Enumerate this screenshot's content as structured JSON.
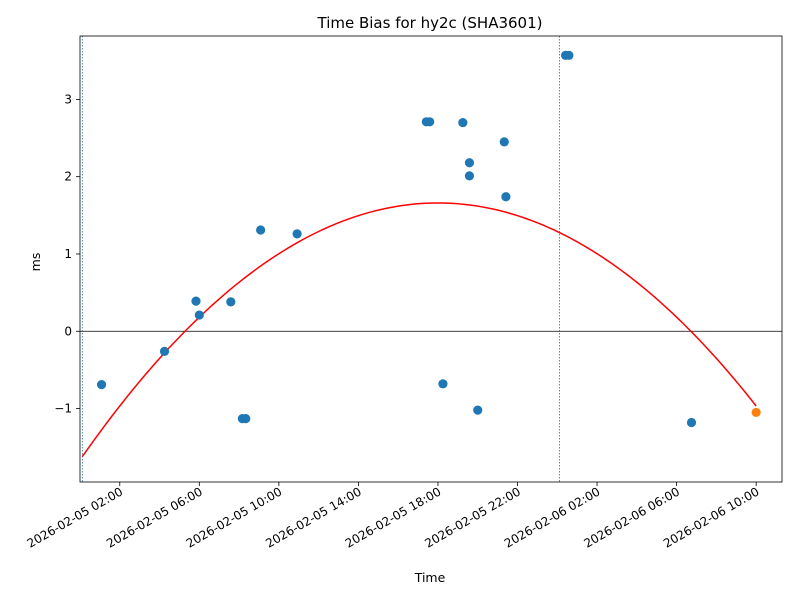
{
  "chart_data": {
    "type": "scatter",
    "title": "Time Bias for hy2c (SHA3601)",
    "xlabel": "Time",
    "ylabel": "ms",
    "xlim": [
      "2026-02-05 00:00",
      "2026-02-06 11:18"
    ],
    "ylim": [
      -1.95,
      3.82
    ],
    "x_ticks": [
      {
        "value": "2026-02-05 02:00",
        "label": "2026-02-05 02:00"
      },
      {
        "value": "2026-02-05 06:00",
        "label": "2026-02-05 06:00"
      },
      {
        "value": "2026-02-05 10:00",
        "label": "2026-02-05 10:00"
      },
      {
        "value": "2026-02-05 14:00",
        "label": "2026-02-05 14:00"
      },
      {
        "value": "2026-02-05 18:00",
        "label": "2026-02-05 18:00"
      },
      {
        "value": "2026-02-05 22:00",
        "label": "2026-02-05 22:00"
      },
      {
        "value": "2026-02-06 02:00",
        "label": "2026-02-06 02:00"
      },
      {
        "value": "2026-02-06 06:00",
        "label": "2026-02-06 06:00"
      },
      {
        "value": "2026-02-06 10:00",
        "label": "2026-02-06 10:00"
      }
    ],
    "y_ticks": [
      {
        "value": -1,
        "label": "−1"
      },
      {
        "value": 0,
        "label": "0"
      },
      {
        "value": 1,
        "label": "1"
      },
      {
        "value": 2,
        "label": "2"
      },
      {
        "value": 3,
        "label": "3"
      }
    ],
    "vertical_lines": [
      {
        "x": "2026-02-05 00:07",
        "style": "dotted",
        "color": "#1f77b4"
      },
      {
        "x": "2026-02-06 00:07",
        "style": "dotted",
        "color": "#1f77b4"
      }
    ],
    "horizontal_line": {
      "y": 0,
      "color": "#000000"
    },
    "series": [
      {
        "kind": "points",
        "color": "#1f77b4",
        "points": [
          {
            "x": "2026-02-05 01:05",
            "y": -0.69
          },
          {
            "x": "2026-02-05 04:15",
            "y": -0.26
          },
          {
            "x": "2026-02-05 05:50",
            "y": 0.39
          },
          {
            "x": "2026-02-05 06:00",
            "y": 0.21
          },
          {
            "x": "2026-02-05 07:35",
            "y": 0.38
          },
          {
            "x": "2026-02-05 08:10",
            "y": -1.13
          },
          {
            "x": "2026-02-05 08:20",
            "y": -1.13
          },
          {
            "x": "2026-02-05 09:05",
            "y": 1.31
          },
          {
            "x": "2026-02-05 10:55",
            "y": 1.26
          },
          {
            "x": "2026-02-05 17:25",
            "y": 2.71
          },
          {
            "x": "2026-02-05 17:35",
            "y": 2.71
          },
          {
            "x": "2026-02-05 18:15",
            "y": -0.68
          },
          {
            "x": "2026-02-05 19:15",
            "y": 2.7
          },
          {
            "x": "2026-02-05 19:35",
            "y": 2.18
          },
          {
            "x": "2026-02-05 19:35",
            "y": 2.01
          },
          {
            "x": "2026-02-05 20:00",
            "y": -1.02
          },
          {
            "x": "2026-02-05 21:20",
            "y": 2.45
          },
          {
            "x": "2026-02-05 21:25",
            "y": 1.74
          },
          {
            "x": "2026-02-06 00:25",
            "y": 3.57
          },
          {
            "x": "2026-02-06 00:35",
            "y": 3.57
          },
          {
            "x": "2026-02-06 06:45",
            "y": -1.18
          }
        ]
      },
      {
        "kind": "points",
        "color": "#ff7f0e",
        "points": [
          {
            "x": "2026-02-06 10:00",
            "y": -1.05
          }
        ]
      },
      {
        "kind": "curve",
        "color": "#ff0000",
        "fit": "quadratic",
        "x_range": [
          "2026-02-05 00:07",
          "2026-02-06 10:00"
        ],
        "vertex": {
          "x": "2026-02-05 18:00",
          "y": 1.66
        },
        "curvature": -0.01026
      }
    ]
  }
}
